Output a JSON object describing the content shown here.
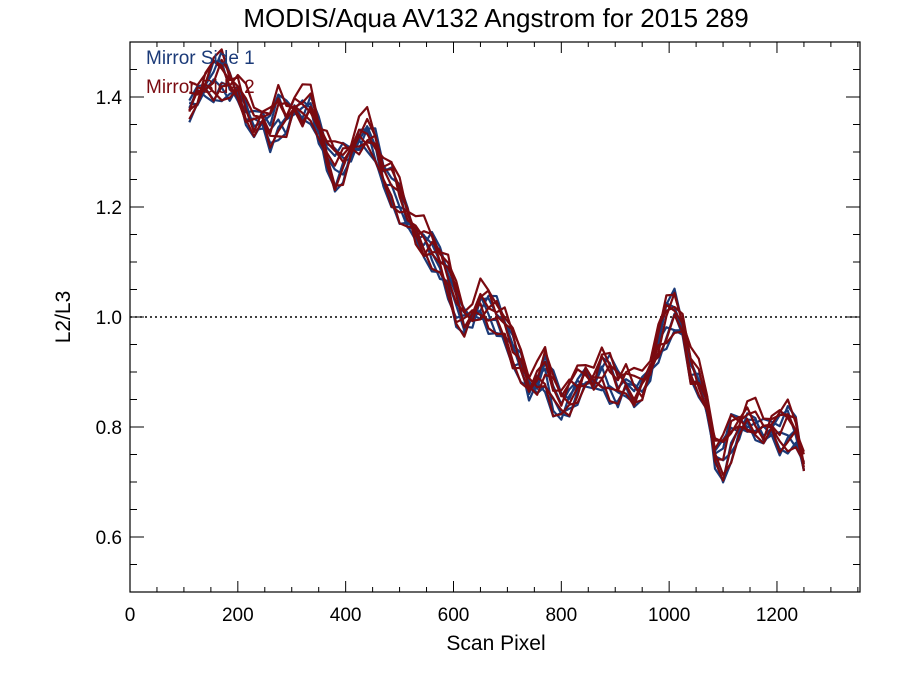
{
  "chart_data": {
    "type": "line",
    "title": "MODIS/Aqua AV132 Angstrom for 2015 289",
    "xlabel": "Scan Pixel",
    "ylabel": "L2/L3",
    "xlim": [
      0,
      1354
    ],
    "ylim": [
      0.5,
      1.5
    ],
    "x_ticks": [
      0,
      200,
      400,
      600,
      800,
      1000,
      1200
    ],
    "x_tick_labels": [
      "0",
      "200",
      "400",
      "600",
      "800",
      "1000",
      "1200"
    ],
    "y_ticks": [
      0.6,
      0.8,
      1.0,
      1.2,
      1.4
    ],
    "y_tick_labels": [
      "0.6",
      "0.8",
      "1.0",
      "1.2",
      "1.4"
    ],
    "reference_line": {
      "y": 1.0,
      "style": "dotted"
    },
    "grid": false,
    "legend_position": "top-left",
    "colors": {
      "mirror_side_1": "#1b3a78",
      "mirror_side_2": "#7a0a10",
      "reference": "#000000"
    },
    "base_curve": {
      "x": [
        110,
        125,
        140,
        155,
        170,
        185,
        200,
        215,
        230,
        245,
        260,
        275,
        290,
        305,
        320,
        335,
        350,
        365,
        380,
        395,
        410,
        425,
        440,
        455,
        470,
        485,
        500,
        515,
        530,
        545,
        560,
        575,
        590,
        605,
        620,
        635,
        650,
        665,
        680,
        695,
        710,
        725,
        740,
        755,
        770,
        785,
        800,
        815,
        830,
        845,
        860,
        875,
        890,
        905,
        920,
        935,
        950,
        965,
        980,
        995,
        1010,
        1025,
        1040,
        1055,
        1070,
        1085,
        1100,
        1115,
        1130,
        1145,
        1160,
        1175,
        1190,
        1205,
        1220,
        1235,
        1250
      ],
      "y": [
        1.38,
        1.4,
        1.42,
        1.43,
        1.44,
        1.42,
        1.41,
        1.37,
        1.35,
        1.36,
        1.34,
        1.37,
        1.36,
        1.38,
        1.37,
        1.38,
        1.34,
        1.3,
        1.27,
        1.28,
        1.3,
        1.32,
        1.33,
        1.31,
        1.26,
        1.24,
        1.21,
        1.18,
        1.15,
        1.13,
        1.12,
        1.1,
        1.07,
        1.02,
        0.99,
        1.0,
        1.02,
        1.01,
        1.0,
        0.98,
        0.94,
        0.91,
        0.87,
        0.88,
        0.9,
        0.86,
        0.84,
        0.85,
        0.87,
        0.89,
        0.88,
        0.9,
        0.89,
        0.87,
        0.88,
        0.86,
        0.87,
        0.9,
        0.95,
        0.99,
        1.01,
        0.98,
        0.9,
        0.88,
        0.84,
        0.75,
        0.74,
        0.78,
        0.8,
        0.81,
        0.8,
        0.79,
        0.8,
        0.79,
        0.8,
        0.79,
        0.73
      ]
    },
    "series": [
      {
        "name": "Mirror Side 1",
        "color": "#1b3a78",
        "offsets": [
          -0.012,
          0.008,
          -0.02,
          0.015,
          -0.006
        ]
      },
      {
        "name": "Mirror Side 2",
        "color": "#7a0a10",
        "offsets": [
          0.014,
          -0.01,
          0.022,
          -0.016,
          0.004,
          0.026
        ]
      }
    ]
  },
  "legend": {
    "items": [
      {
        "label": "Mirror Side 1",
        "color": "#1b3a78"
      },
      {
        "label": "Mirror Side 2",
        "color": "#7a0a10"
      }
    ]
  }
}
